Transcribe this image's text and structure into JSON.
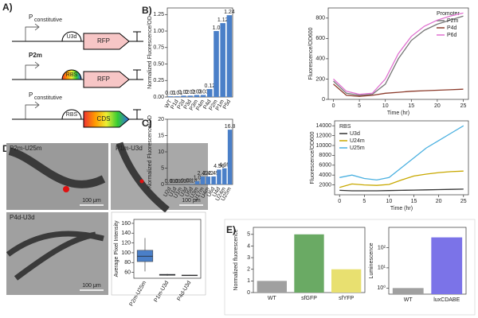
{
  "panels": [
    "A)",
    "B)",
    "C)",
    "D)",
    "E)"
  ],
  "panel_a": {
    "rows": [
      {
        "promoter": "P",
        "promoter_sub": "constitutive",
        "rbs": "U3d",
        "gene": "RFP"
      },
      {
        "promoter": "P2m",
        "rbs": "RBS",
        "gene": "RFP"
      },
      {
        "promoter": "P",
        "promoter_sub": "constitutive",
        "rbs": "RBS",
        "gene": "CDS"
      }
    ]
  },
  "panel_d": {
    "images": [
      {
        "label": "P2m-U25m",
        "scale": "100 μm"
      },
      {
        "label": "P1m-U3d",
        "scale": "100 μm"
      },
      {
        "label": "P4d-U3d",
        "scale": "100 μm"
      }
    ]
  },
  "chart_data": [
    {
      "type": "bar",
      "ylabel": "Normalized Fluorescence/OD",
      "categories": [
        "WT",
        "P1d",
        "P2d",
        "P3d",
        "P3m",
        "P4m",
        "P4d",
        "P2m",
        "P1m",
        "P5d"
      ],
      "values": [
        0.01,
        0.01,
        0.02,
        0.02,
        0.03,
        0.03,
        0.12,
        1.0,
        1.12,
        1.24
      ],
      "value_labels": [
        "0.01",
        "0.01",
        "0.02",
        "0.02",
        "0.03",
        "0.03",
        "0.12",
        "1.0",
        "1.12",
        "1.24"
      ],
      "color": "#4a7fc8",
      "ylim": [
        0,
        1.35
      ],
      "yticks": [
        {
          "value": 0,
          "label": "0.00"
        },
        {
          "value": 0.25,
          "label": "0.25"
        },
        {
          "value": 0.5,
          "label": "0.50"
        },
        {
          "value": 0.75,
          "label": "0.75"
        },
        {
          "value": 1,
          "label": "1.00"
        },
        {
          "value": 1.25,
          "label": "1.25"
        }
      ]
    },
    {
      "type": "line",
      "ylabel": "Fluorescence/OD600",
      "xlabel": "Time (hr)",
      "legend_title": "Promoter",
      "x": [
        0,
        2.5,
        5,
        7.5,
        10,
        12.5,
        15,
        17.5,
        20,
        22.5,
        25
      ],
      "series": [
        {
          "name": "P2m",
          "color": "#777777",
          "values": [
            180,
            60,
            40,
            50,
            150,
            400,
            580,
            680,
            740,
            780,
            820
          ]
        },
        {
          "name": "P4d",
          "color": "#8b3a2a",
          "values": [
            150,
            40,
            30,
            40,
            60,
            70,
            80,
            85,
            90,
            95,
            100
          ]
        },
        {
          "name": "P6d",
          "color": "#e070d0",
          "values": [
            200,
            80,
            50,
            60,
            200,
            450,
            620,
            720,
            780,
            820,
            850
          ]
        }
      ],
      "xlim": [
        -1,
        26
      ],
      "xticks": [
        0,
        5,
        10,
        15,
        20,
        25
      ],
      "ylim": [
        0,
        900
      ],
      "yticks": [
        0,
        200,
        400,
        600,
        800
      ],
      "legend": "upper right"
    },
    {
      "type": "bar",
      "ylabel": "Normalized Fluorescence/OD",
      "categories": [
        "U2d",
        "U1d",
        "U1m",
        "U3d",
        "U5d",
        "U3m",
        "U17m",
        "U4m",
        "U6d",
        "U4d",
        "U24m",
        "U25m"
      ],
      "values": [
        0.01,
        0.01,
        0.01,
        0.03,
        0.14,
        1.0,
        2.42,
        2.42,
        2.45,
        4.56,
        4.95,
        16.8
      ],
      "value_labels": [
        "0.01",
        "0.01",
        "0.01",
        "0.03",
        "0.14",
        "1.0",
        "2.42",
        "2.42",
        "2.45",
        "4.56",
        "4.95",
        "16.8"
      ],
      "color": "#4a7fc8",
      "ylim": [
        0,
        20
      ],
      "yticks": [
        0,
        5,
        10,
        15,
        20
      ]
    },
    {
      "type": "line",
      "ylabel": "Fluorescence/OD600",
      "xlabel": "Time (hr)",
      "legend_title": "RBS",
      "x": [
        0,
        2.5,
        5,
        7.5,
        10,
        12.5,
        15,
        17.5,
        20,
        22.5,
        25
      ],
      "series": [
        {
          "name": "U3d",
          "color": "#333333",
          "values": [
            900,
            800,
            800,
            800,
            850,
            900,
            950,
            1000,
            1050,
            1100,
            1150
          ]
        },
        {
          "name": "U24m",
          "color": "#c8a800",
          "values": [
            1500,
            2200,
            2000,
            1900,
            2100,
            3000,
            3800,
            4200,
            4500,
            4700,
            4800
          ]
        },
        {
          "name": "U25m",
          "color": "#4ab0e0",
          "values": [
            3500,
            4000,
            3300,
            3000,
            3500,
            5500,
            7500,
            9500,
            11000,
            12500,
            14000
          ]
        }
      ],
      "xlim": [
        -1,
        26
      ],
      "xticks": [
        0,
        5,
        10,
        15,
        20,
        25
      ],
      "ylim": [
        0,
        15000
      ],
      "yticks": [
        2000,
        4000,
        6000,
        8000,
        10000,
        12000,
        14000
      ],
      "legend": "upper left"
    },
    {
      "type": "box",
      "ylabel": "Average Pixel Intensity",
      "categories": [
        "P2m-U25m",
        "P1m-U3d",
        "P4d-U3d"
      ],
      "boxes": [
        {
          "whislo": 62,
          "q1": 82,
          "med": 93,
          "q3": 105,
          "whishi": 130
        },
        {
          "whislo": 53,
          "q1": 54,
          "med": 55,
          "q3": 56,
          "whishi": 57
        },
        {
          "whislo": 53,
          "q1": 53.5,
          "med": 54,
          "q3": 54.5,
          "whishi": 55
        }
      ],
      "color": "#4a7fc8",
      "ylim": [
        48,
        168
      ],
      "yticks": [
        60,
        80,
        100,
        120,
        140,
        160
      ]
    },
    {
      "type": "bar",
      "ylabel": "Normalized fluorescence",
      "categories": [
        "WT",
        "sfGFP",
        "sfYFP"
      ],
      "values": [
        1,
        5,
        2
      ],
      "colors": [
        "#a0a0a0",
        "#6aaa64",
        "#e8e070"
      ],
      "ylim": [
        0,
        5.6
      ],
      "yticks": [
        0,
        1,
        2,
        3,
        4,
        5
      ]
    },
    {
      "type": "bar",
      "ylabel": "Luminescence",
      "log": true,
      "categories": [
        "WT",
        "luxCDABE"
      ],
      "values": [
        1,
        320
      ],
      "colors": [
        "#a0a0a0",
        "#7b73e8"
      ],
      "ylim": [
        0.5,
        1000
      ],
      "yticks": [
        {
          "value": 1,
          "label": "10⁰"
        },
        {
          "value": 10,
          "label": "10¹"
        },
        {
          "value": 100,
          "label": "10²"
        }
      ]
    }
  ]
}
